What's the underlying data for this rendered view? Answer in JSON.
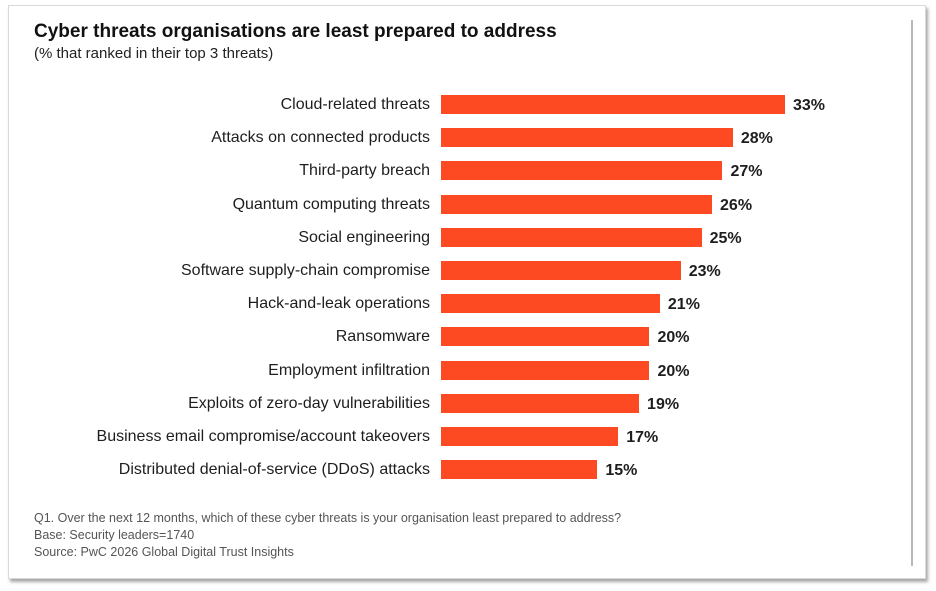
{
  "chart_data": {
    "type": "bar",
    "orientation": "horizontal",
    "title": "Cyber threats organisations are least prepared to address",
    "subtitle": "(% that ranked in their top 3 threats)",
    "xlabel": "",
    "ylabel": "",
    "xlim": [
      0,
      33
    ],
    "grid": false,
    "legend": "none",
    "bar_color": "#fe4a23",
    "value_suffix": "%",
    "categories": [
      "Cloud-related threats",
      "Attacks on connected products",
      "Third-party breach",
      "Quantum computing threats",
      "Social engineering",
      "Software supply-chain compromise",
      "Hack-and-leak operations",
      "Ransomware",
      "Employment infiltration",
      "Exploits of zero-day vulnerabilities",
      "Business email compromise/account takeovers",
      "Distributed denial-of-service (DDoS) attacks"
    ],
    "values": [
      33,
      28,
      27,
      26,
      25,
      23,
      21,
      20,
      20,
      19,
      17,
      15
    ],
    "value_labels": [
      "33%",
      "28%",
      "27%",
      "26%",
      "25%",
      "23%",
      "21%",
      "20%",
      "20%",
      "19%",
      "17%",
      "15%"
    ]
  },
  "footnotes": {
    "question": "Q1. Over the next 12 months, which of these cyber threats is your organisation least prepared to address?",
    "base": "Base: Security leaders=1740",
    "source": "Source: PwC 2026 Global Digital Trust Insights"
  }
}
